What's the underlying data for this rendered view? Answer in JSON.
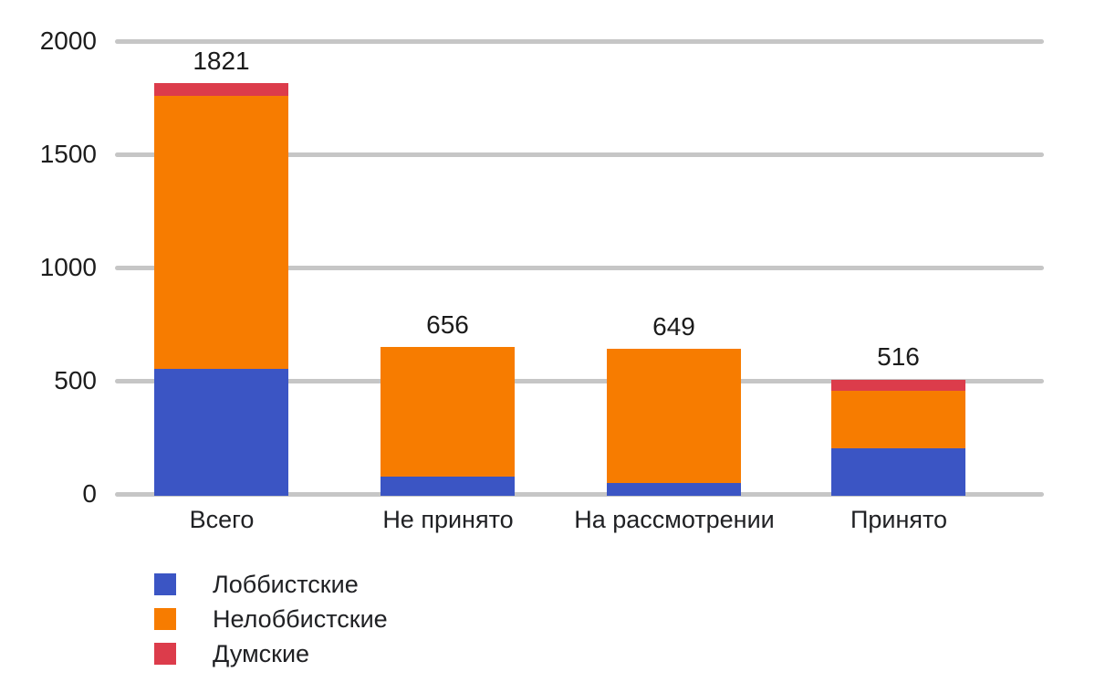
{
  "chart_data": {
    "type": "bar",
    "stacked": true,
    "categories": [
      "Всего",
      "Не принято",
      "На рассмотрении",
      "Принято"
    ],
    "series": [
      {
        "name": "Лоббистские",
        "color": "#3B55C4",
        "values": [
          560,
          85,
          58,
          210
        ]
      },
      {
        "name": "Нелоббистские",
        "color": "#F77C00",
        "values": [
          1205,
          571,
          591,
          256
        ]
      },
      {
        "name": "Думские",
        "color": "#DC3C4B",
        "values": [
          56,
          0,
          0,
          50
        ]
      }
    ],
    "totals": [
      1821,
      656,
      649,
      516
    ],
    "y_axis": {
      "ticks": [
        0,
        500,
        1000,
        1500,
        2000
      ],
      "min": 0,
      "max": 2000,
      "grid": true
    },
    "legend_position": "bottom-left",
    "colors": {
      "gridline": "#C6C6C6",
      "axis_text": "#1D1D1D",
      "label_text": "#1B1B1B",
      "background": "#FFFFFF"
    }
  }
}
